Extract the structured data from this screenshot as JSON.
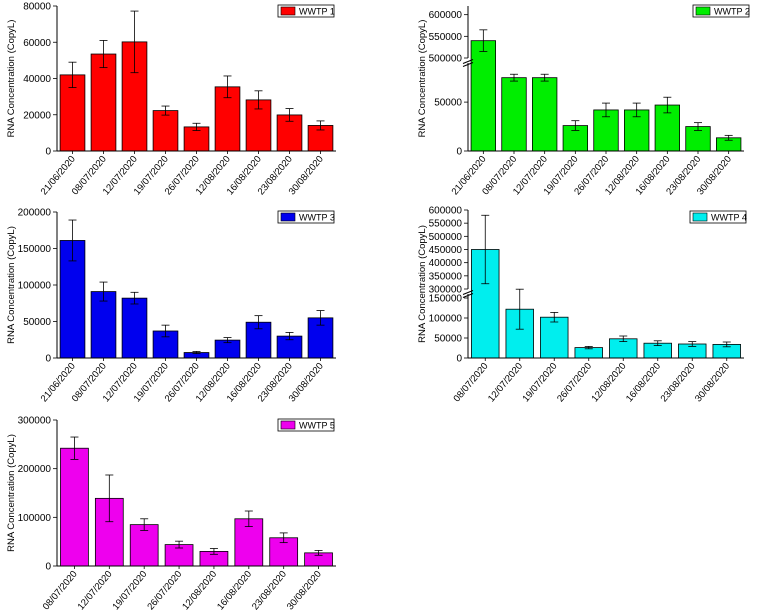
{
  "figure": {
    "chart_data": [
      {
        "type": "bar",
        "title": "",
        "legend": "WWTP 1",
        "color": "#ff0000",
        "ylabel": "RNA Concentration (CopyL)",
        "xlabel": "",
        "categories": [
          "21/06/2020",
          "08/07/2020",
          "12/07/2020",
          "19/07/2020",
          "26/07/2020",
          "12/08/2020",
          "16/08/2020",
          "23/08/2020",
          "30/08/2020"
        ],
        "values": [
          42000,
          53500,
          60200,
          22300,
          13300,
          35400,
          28200,
          19900,
          14100
        ],
        "errors": [
          7000,
          7500,
          17000,
          2500,
          2000,
          6000,
          5000,
          3500,
          2500
        ],
        "ylim": [
          0,
          80000
        ],
        "yticks": [
          0,
          20000,
          40000,
          60000,
          80000
        ],
        "ytick_labels": [
          "0",
          "20000",
          "40000",
          "60000",
          "80000"
        ],
        "legend_position": "top-right",
        "grid": false
      },
      {
        "type": "bar",
        "title": "",
        "legend": "WWTP 2",
        "color": "#00ee00",
        "ylabel": "RNA Concentration (CopyL)",
        "xlabel": "",
        "categories": [
          "21/06/2020",
          "08/07/2020",
          "12/07/2020",
          "19/07/2020",
          "26/07/2020",
          "12/08/2020",
          "16/08/2020",
          "23/08/2020",
          "30/08/2020"
        ],
        "values": [
          540000,
          75000,
          75000,
          26000,
          42000,
          42000,
          47000,
          25000,
          13500
        ],
        "errors": [
          25000,
          3500,
          3500,
          5000,
          7000,
          7000,
          8000,
          4000,
          2500
        ],
        "axis_break": {
          "lower": [
            0,
            90000
          ],
          "upper": [
            500000,
            620000
          ]
        },
        "yticks": [
          0,
          50000,
          500000,
          550000,
          600000
        ],
        "ytick_labels": [
          "0",
          "50000",
          "500000",
          "550000",
          "600000"
        ],
        "legend_position": "top-right",
        "grid": false
      },
      {
        "type": "bar",
        "title": "",
        "legend": "WWTP 3",
        "color": "#0000ee",
        "ylabel": "RNA Concentration (CopyL)",
        "xlabel": "",
        "categories": [
          "21/06/2020",
          "08/07/2020",
          "12/07/2020",
          "19/07/2020",
          "26/07/2020",
          "12/08/2020",
          "16/08/2020",
          "23/08/2020",
          "30/08/2020"
        ],
        "values": [
          161000,
          91000,
          82000,
          37000,
          7500,
          24500,
          49000,
          30000,
          55000
        ],
        "errors": [
          28000,
          13000,
          8000,
          8000,
          1500,
          3500,
          9000,
          5000,
          10000
        ],
        "ylim": [
          0,
          200000
        ],
        "yticks": [
          0,
          50000,
          100000,
          150000,
          200000
        ],
        "ytick_labels": [
          "0",
          "50000",
          "100000",
          "150000",
          "200000"
        ],
        "legend_position": "top-right",
        "grid": false
      },
      {
        "type": "bar",
        "title": "",
        "legend": "WWTP 4",
        "color": "#00eeee",
        "ylabel": "RNA Concentration (CopyL)",
        "xlabel": "",
        "categories": [
          "08/07/2020",
          "12/07/2020",
          "19/07/2020",
          "26/07/2020",
          "12/08/2020",
          "16/08/2020",
          "23/08/2020",
          "30/08/2020"
        ],
        "values": [
          450000,
          122000,
          102000,
          26000,
          48000,
          37000,
          35000,
          34000
        ],
        "errors": [
          130000,
          50000,
          12000,
          3000,
          7000,
          6000,
          6000,
          6000
        ],
        "axis_break": {
          "lower": [
            0,
            160000
          ],
          "upper": [
            300000,
            600000
          ]
        },
        "yticks": [
          0,
          50000,
          100000,
          150000,
          300000,
          350000,
          400000,
          450000,
          500000,
          550000,
          600000
        ],
        "ytick_labels": [
          "0",
          "50000",
          "100000",
          "150000",
          "300000",
          "350000",
          "400000",
          "450000",
          "500000",
          "550000",
          "600000"
        ],
        "legend_position": "top-right",
        "grid": false
      },
      {
        "type": "bar",
        "title": "",
        "legend": "WWTP 5",
        "color": "#ee00ee",
        "ylabel": "RNA Concentration (CopyL)",
        "xlabel": "",
        "categories": [
          "08/07/2020",
          "12/07/2020",
          "19/07/2020",
          "26/07/2020",
          "12/08/2020",
          "16/08/2020",
          "23/08/2020",
          "30/08/2020"
        ],
        "values": [
          242000,
          139000,
          85000,
          44000,
          30000,
          97000,
          58000,
          27000
        ],
        "errors": [
          23000,
          48000,
          12000,
          7000,
          6000,
          16000,
          10000,
          5000
        ],
        "ylim": [
          0,
          300000
        ],
        "yticks": [
          0,
          100000,
          200000,
          300000
        ],
        "ytick_labels": [
          "0",
          "100000",
          "200000",
          "300000"
        ],
        "legend_position": "top-right",
        "grid": false
      }
    ]
  }
}
